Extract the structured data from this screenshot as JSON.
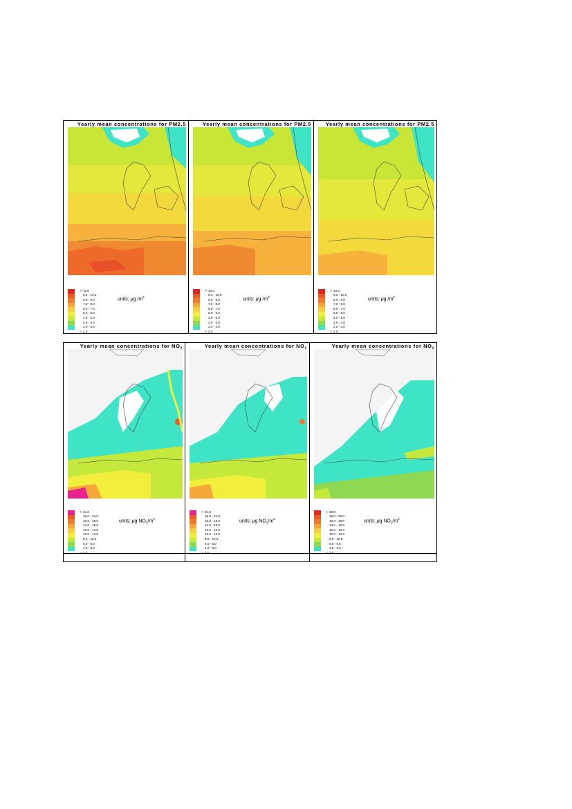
{
  "panels_pm25": [
    {
      "title_prefix": "Yearly mean concentrations for ",
      "title_species": "PM2.5",
      "title_sub": "",
      "units_prefix": "units: ",
      "units_mu": "μ",
      "units_body": "g /m",
      "units_sub": "",
      "units_sup": "3",
      "legend": [
        {
          "sym": ">",
          "label": "10.0",
          "color": "#e0271f"
        },
        {
          "sym": "",
          "label": "9.0 - 10.0",
          "color": "#ee5a26"
        },
        {
          "sym": "",
          "label": "8.0 - 9.0",
          "color": "#f07a30"
        },
        {
          "sym": "",
          "label": "7.0 - 8.0",
          "color": "#f5a83a"
        },
        {
          "sym": "",
          "label": "6.0 - 7.0",
          "color": "#f8cd40"
        },
        {
          "sym": "",
          "label": "5.0 - 6.0",
          "color": "#f2ef3c"
        },
        {
          "sym": "",
          "label": "4.0 - 5.0",
          "color": "#c4e83c"
        },
        {
          "sym": "",
          "label": "3.0 - 4.0",
          "color": "#8fd851"
        },
        {
          "sym": "",
          "label": "2.0 - 3.0",
          "color": "#3fe3c6"
        },
        {
          "sym": "<",
          "label": "2.0",
          "color": "#ffffff"
        }
      ]
    },
    {
      "title_prefix": "Yearly mean concentrations for ",
      "title_species": "PM2.5",
      "title_sub": "",
      "units_prefix": "units: ",
      "units_mu": "μ",
      "units_body": "g /m",
      "units_sub": "",
      "units_sup": "3",
      "legend": [
        {
          "sym": ">",
          "label": "10.0",
          "color": "#e0271f"
        },
        {
          "sym": "",
          "label": "9.0 - 10.0",
          "color": "#ee5a26"
        },
        {
          "sym": "",
          "label": "8.0 - 9.0",
          "color": "#f07a30"
        },
        {
          "sym": "",
          "label": "7.0 - 8.0",
          "color": "#f5a83a"
        },
        {
          "sym": "",
          "label": "6.0 - 7.0",
          "color": "#f8cd40"
        },
        {
          "sym": "",
          "label": "5.0 - 6.0",
          "color": "#f2ef3c"
        },
        {
          "sym": "",
          "label": "4.0 - 5.0",
          "color": "#c4e83c"
        },
        {
          "sym": "",
          "label": "3.0 - 4.0",
          "color": "#8fd851"
        },
        {
          "sym": "",
          "label": "2.0 - 3.0",
          "color": "#3fe3c6"
        },
        {
          "sym": "<",
          "label": "2.0",
          "color": "#ffffff"
        }
      ]
    },
    {
      "title_prefix": "Yearly mean concentrations for ",
      "title_species": "PM2.5",
      "title_sub": "",
      "units_prefix": "units: ",
      "units_mu": "μ",
      "units_body": "g /m",
      "units_sub": "",
      "units_sup": "3",
      "legend": [
        {
          "sym": ">",
          "label": "10.0",
          "color": "#e0271f"
        },
        {
          "sym": "",
          "label": "9.0 - 10.0",
          "color": "#ee5a26"
        },
        {
          "sym": "",
          "label": "8.0 - 9.0",
          "color": "#f07a30"
        },
        {
          "sym": "",
          "label": "7.0 - 8.0",
          "color": "#f5a83a"
        },
        {
          "sym": "",
          "label": "6.0 - 7.0",
          "color": "#f8cd40"
        },
        {
          "sym": "",
          "label": "5.0 - 6.0",
          "color": "#f2ef3c"
        },
        {
          "sym": "",
          "label": "4.0 - 5.0",
          "color": "#c4e83c"
        },
        {
          "sym": "",
          "label": "3.0 - 4.0",
          "color": "#8fd851"
        },
        {
          "sym": "",
          "label": "2.0 - 3.0",
          "color": "#3fe3c6"
        },
        {
          "sym": "<",
          "label": "2.0",
          "color": "#ffffff"
        }
      ]
    }
  ],
  "panels_no2": [
    {
      "title_prefix": "Yearly mean concentrations for ",
      "title_species": "NO",
      "title_sub": "2",
      "units_prefix": "units: ",
      "units_mu": "μ",
      "units_body": "g NO",
      "units_sub": "2",
      "units_tail": "/m",
      "units_sup": "3",
      "legend": [
        {
          "sym": ">",
          "label": "24.0",
          "color": "#e8228c"
        },
        {
          "sym": "",
          "label": "18.0 - 24.0",
          "color": "#ee5a26"
        },
        {
          "sym": "",
          "label": "16.0 - 18.0",
          "color": "#f07a30"
        },
        {
          "sym": "",
          "label": "14.0 - 16.0",
          "color": "#f5a83a"
        },
        {
          "sym": "",
          "label": "12.0 - 14.0",
          "color": "#f8cd40"
        },
        {
          "sym": "",
          "label": "10.0 - 12.0",
          "color": "#f2ef3c"
        },
        {
          "sym": "",
          "label": "8.0 - 10.0",
          "color": "#c4e83c"
        },
        {
          "sym": "",
          "label": "6.0 - 8.0",
          "color": "#8fd851"
        },
        {
          "sym": "",
          "label": "4.0 - 6.0",
          "color": "#3fe3c6"
        },
        {
          "sym": "<",
          "label": "4.0",
          "color": "#ffffff"
        }
      ]
    },
    {
      "title_prefix": "Yearly mean concentrations for ",
      "title_species": "NO",
      "title_sub": "2",
      "units_prefix": "units: ",
      "units_mu": "μ",
      "units_body": "g NO",
      "units_sub": "2",
      "units_tail": "/m",
      "units_sup": "3",
      "legend": [
        {
          "sym": ">",
          "label": "21.8",
          "color": "#e8228c"
        },
        {
          "sym": "",
          "label": "18.0 - 21.8",
          "color": "#ee5a26"
        },
        {
          "sym": "",
          "label": "16.0 - 18.0",
          "color": "#f07a30"
        },
        {
          "sym": "",
          "label": "14.0 - 16.0",
          "color": "#f5a83a"
        },
        {
          "sym": "",
          "label": "12.0 - 14.0",
          "color": "#f8cd40"
        },
        {
          "sym": "",
          "label": "10.0 - 12.0",
          "color": "#f2ef3c"
        },
        {
          "sym": "",
          "label": "8.0 - 10.0",
          "color": "#c4e83c"
        },
        {
          "sym": "",
          "label": "6.0 - 8.0",
          "color": "#8fd851"
        },
        {
          "sym": "",
          "label": "4.0 - 6.0",
          "color": "#3fe3c6"
        },
        {
          "sym": "<",
          "label": "4.0",
          "color": "#ffffff"
        }
      ]
    },
    {
      "title_prefix": "Yearly mean concentrations for ",
      "title_species": "NO",
      "title_sub": "2",
      "units_prefix": "units: ",
      "units_mu": "μ",
      "units_body": "g NO",
      "units_sub": "2",
      "units_tail": "/m",
      "units_sup": "3",
      "legend": [
        {
          "sym": ">",
          "label": "20.0",
          "color": "#e0271f"
        },
        {
          "sym": "",
          "label": "18.0 - 20.0",
          "color": "#ee5a26"
        },
        {
          "sym": "",
          "label": "16.0 - 18.0",
          "color": "#f07a30"
        },
        {
          "sym": "",
          "label": "14.0 - 16.0",
          "color": "#f5a83a"
        },
        {
          "sym": "",
          "label": "12.0 - 14.0",
          "color": "#f8cd40"
        },
        {
          "sym": "",
          "label": "10.0 - 12.0",
          "color": "#f2ef3c"
        },
        {
          "sym": "",
          "label": "8.0 - 10.0",
          "color": "#c4e83c"
        },
        {
          "sym": "",
          "label": "6.0 - 8.0",
          "color": "#8fd851"
        },
        {
          "sym": "",
          "label": "4.0 - 6.0",
          "color": "#3fe3c6"
        },
        {
          "sym": "<",
          "label": "4.0",
          "color": "#ffffff"
        }
      ]
    }
  ],
  "colors": {
    "sea_pm_north": "#c9e636",
    "sea_pm_mid": "#f3e63a",
    "sea_pm_south": "#f7b43c",
    "sea_pm_hot": "#ef6a2a",
    "no2_base": "#3fe3c6",
    "no2_low": "#ffffff",
    "no2_mid": "#c4e83c",
    "no2_high": "#f5a83a",
    "no2_peak": "#e8228c"
  }
}
